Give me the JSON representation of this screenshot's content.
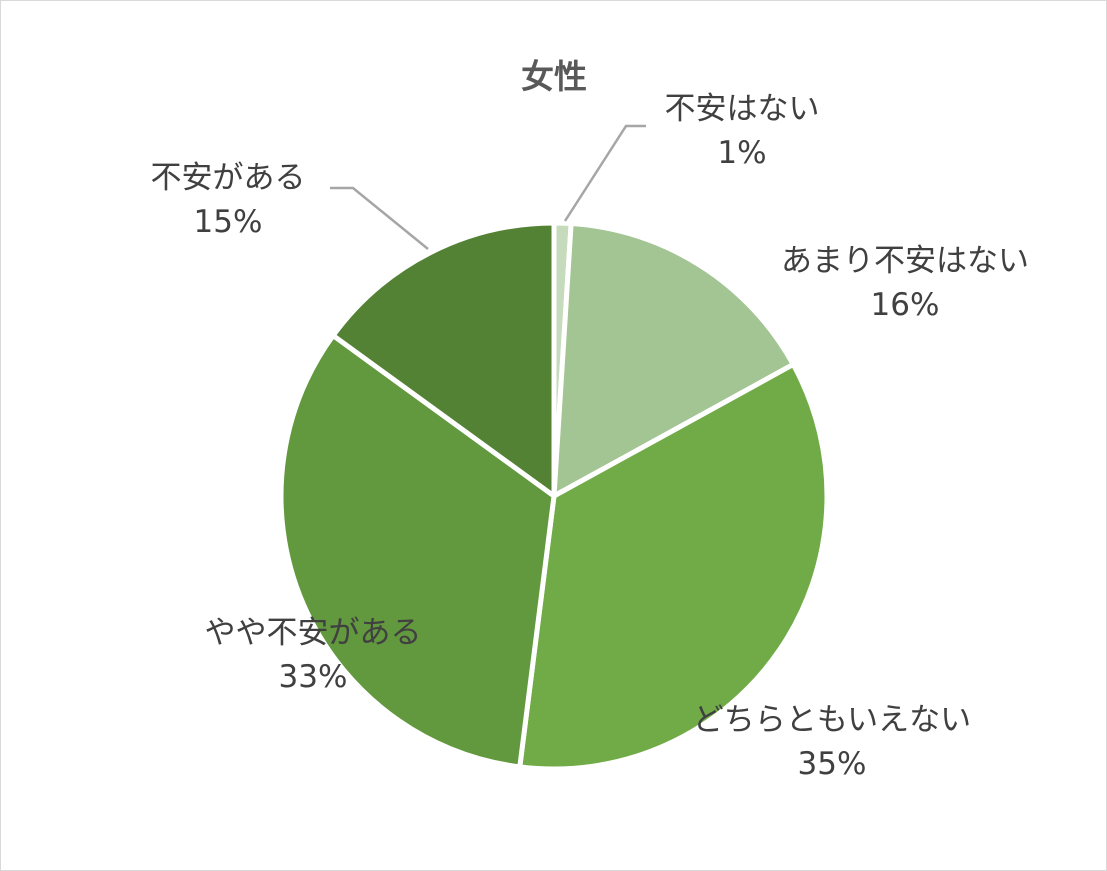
{
  "chart_data": {
    "type": "pie",
    "title": "女性",
    "slices": [
      {
        "label": "不安はない",
        "value": 1,
        "value_label": "1%",
        "color": "#c5dbbb"
      },
      {
        "label": "あまり不安はない",
        "value": 16,
        "value_label": "16%",
        "color": "#a3c493"
      },
      {
        "label": "どちらともいえない",
        "value": 35,
        "value_label": "35%",
        "color": "#71ab48"
      },
      {
        "label": "やや不安がある",
        "value": 33,
        "value_label": "33%",
        "color": "#62983e"
      },
      {
        "label": "不安がある",
        "value": 15,
        "value_label": "15%",
        "color": "#548235"
      }
    ],
    "start_angle": "12 o'clock",
    "direction": "clockwise",
    "legend": "none",
    "data_labels": "category name and percentage",
    "leader_lines": [
      "不安はない",
      "不安がある"
    ],
    "leader_line_color": "#a6a6a6",
    "slice_border_color": "#ffffff",
    "background": "#ffffff",
    "frame_color": "#d9d9d9"
  }
}
